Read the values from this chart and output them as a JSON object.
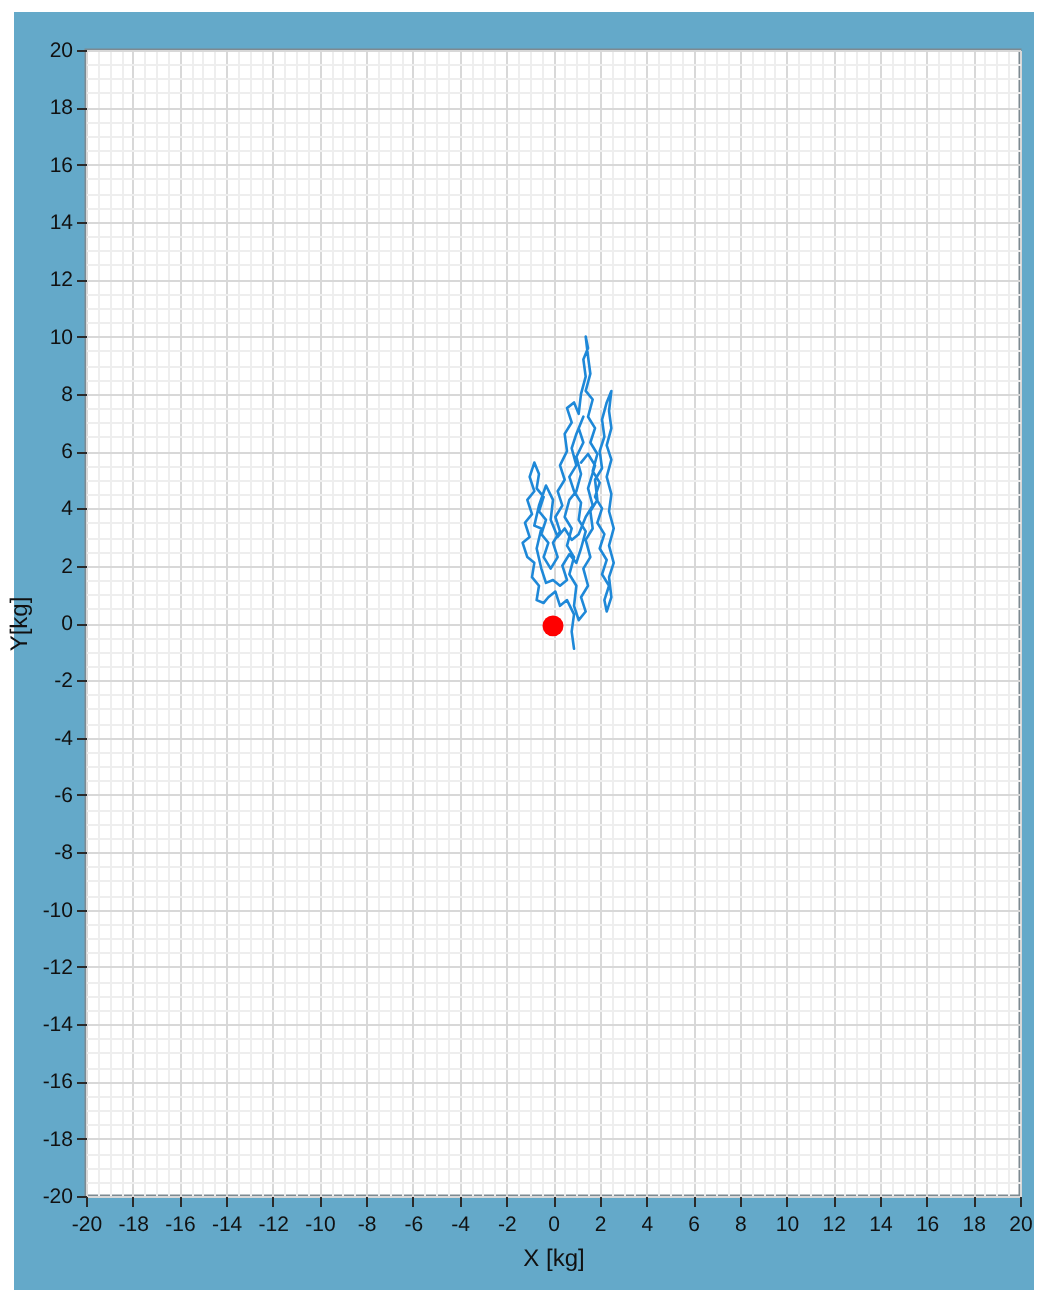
{
  "chart_data": {
    "type": "line",
    "xlabel": "X [kg]",
    "ylabel": "Y[kg]",
    "xlim": [
      -20,
      20
    ],
    "ylim": [
      -20,
      20
    ],
    "xticks": [
      -20,
      -18,
      -16,
      -14,
      -12,
      -10,
      -8,
      -6,
      -4,
      -2,
      0,
      2,
      4,
      6,
      8,
      10,
      12,
      14,
      16,
      18,
      20
    ],
    "yticks": [
      -20,
      -18,
      -16,
      -14,
      -12,
      -10,
      -8,
      -6,
      -4,
      -2,
      0,
      2,
      4,
      6,
      8,
      10,
      12,
      14,
      16,
      18,
      20
    ],
    "grid": true,
    "series": [
      {
        "color": "#1e88d8",
        "x": [
          0.9,
          0.8,
          0.9,
          0.6,
          0.3,
          0.1,
          -0.2,
          -0.4,
          -0.7,
          -0.6,
          -0.9,
          -0.8,
          -1.1,
          -1.3,
          -1.0,
          -1.2,
          -0.9,
          -1.1,
          -0.8,
          -1.0,
          -0.8,
          -0.6,
          -0.7,
          -0.4,
          -0.6,
          -0.3,
          -0.5,
          -0.2,
          -0.4,
          -0.1,
          0.2,
          0.0,
          0.3,
          0.1,
          0.4,
          0.2,
          0.5,
          0.3,
          0.6,
          0.5,
          0.8,
          0.6,
          0.9,
          1.1,
          1.2,
          1.4,
          1.3,
          1.5,
          1.4,
          1.5,
          1.6,
          1.4,
          1.7,
          1.5,
          1.8,
          1.6,
          1.9,
          1.7,
          2.0,
          1.8,
          2.1,
          1.9,
          2.2,
          2.0,
          2.3,
          2.1,
          2.4,
          2.2,
          2.3,
          2.5,
          2.4,
          2.6,
          2.4,
          2.6,
          2.4,
          2.5,
          2.3,
          2.5,
          2.3,
          2.5,
          2.4,
          2.5,
          2.3,
          2.1,
          2.2,
          2.0,
          2.1,
          1.8,
          1.9,
          1.6,
          1.7,
          1.4,
          1.6,
          1.3,
          1.5,
          1.2,
          1.4,
          1.1,
          0.9,
          1.0,
          0.7,
          0.9,
          0.6,
          0.8,
          0.5,
          0.7,
          1.0,
          1.2,
          1.0,
          1.3,
          1.1,
          1.3,
          1.0,
          0.8,
          1.0,
          0.7,
          0.9,
          1.2,
          1.1,
          1.4,
          1.2,
          1.0,
          0.7,
          0.4,
          0.6,
          0.3,
          0.0,
          -0.3,
          -0.5,
          -0.7,
          -0.5,
          -0.8,
          -0.6,
          -0.3,
          0.0,
          -0.1,
          0.2,
          0.5,
          0.8,
          1.1,
          1.4,
          1.7,
          1.5,
          1.8,
          1.5,
          1.2
        ],
        "values": [
          -0.9,
          -0.3,
          0.3,
          0.8,
          0.6,
          1.1,
          0.9,
          0.7,
          0.8,
          1.3,
          1.6,
          2.1,
          2.3,
          2.8,
          3.0,
          3.5,
          3.8,
          4.3,
          4.6,
          5.1,
          5.6,
          5.2,
          4.7,
          4.4,
          3.9,
          3.6,
          3.1,
          2.8,
          2.3,
          1.9,
          2.3,
          2.8,
          3.2,
          3.7,
          4.1,
          4.6,
          5.0,
          5.5,
          6.0,
          6.6,
          7.0,
          7.5,
          7.7,
          7.3,
          8.0,
          8.6,
          9.2,
          9.6,
          10.0,
          9.3,
          8.7,
          8.1,
          7.8,
          7.2,
          6.8,
          6.3,
          5.9,
          5.3,
          4.9,
          4.4,
          4.0,
          3.5,
          3.1,
          2.6,
          2.2,
          1.7,
          1.3,
          0.8,
          0.4,
          0.9,
          1.6,
          2.1,
          2.7,
          3.3,
          3.9,
          4.5,
          5.1,
          5.7,
          6.2,
          6.8,
          7.4,
          8.1,
          7.7,
          7.1,
          6.5,
          6.0,
          5.4,
          5.0,
          4.3,
          3.9,
          3.3,
          2.9,
          2.3,
          1.9,
          1.3,
          0.9,
          0.4,
          0.1,
          0.6,
          1.3,
          1.7,
          2.3,
          2.7,
          3.3,
          3.7,
          4.3,
          4.6,
          5.2,
          5.8,
          6.3,
          6.8,
          7.2,
          6.6,
          6.1,
          5.5,
          5.1,
          4.6,
          4.2,
          3.6,
          3.2,
          2.6,
          2.1,
          2.4,
          2.0,
          1.5,
          1.3,
          1.5,
          1.4,
          1.9,
          2.6,
          3.3,
          3.4,
          4.1,
          4.8,
          4.3,
          3.6,
          3.0,
          3.3,
          2.9,
          3.1,
          3.7,
          4.1,
          4.7,
          5.5,
          5.9,
          5.6
        ]
      },
      {
        "type": "scatter",
        "color": "#ff0000",
        "marker": "circle",
        "x": [
          0
        ],
        "values": [
          -0.1
        ]
      }
    ]
  }
}
